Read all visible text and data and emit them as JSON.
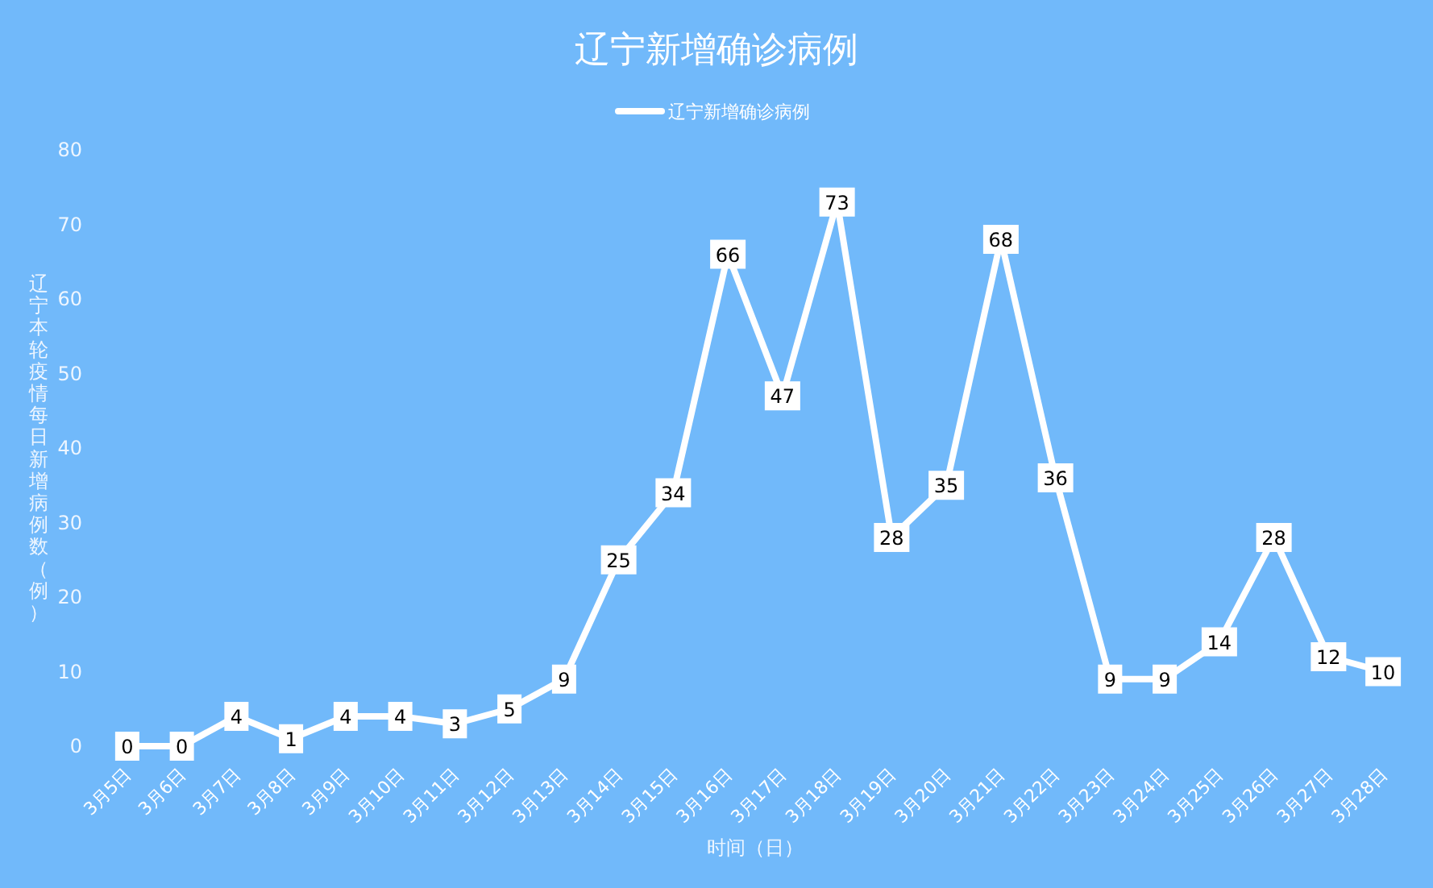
{
  "chart_data": {
    "type": "line",
    "title": "辽宁新增确诊病例",
    "ylabel": "辽宁本轮疫情每日新增病例数（例）",
    "xlabel": "时间（日）",
    "categories": [
      "3月5日",
      "3月6日",
      "3月7日",
      "3月8日",
      "3月9日",
      "3月10日",
      "3月11日",
      "3月12日",
      "3月13日",
      "3月14日",
      "3月15日",
      "3月16日",
      "3月17日",
      "3月18日",
      "3月19日",
      "3月20日",
      "3月21日",
      "3月22日",
      "3月23日",
      "3月24日",
      "3月25日",
      "3月26日",
      "3月27日",
      "3月28日"
    ],
    "series": [
      {
        "name": "辽宁新增确诊病例",
        "color": "#ffffff",
        "values": [
          0,
          0,
          4,
          1,
          4,
          4,
          3,
          5,
          9,
          25,
          34,
          66,
          47,
          73,
          28,
          35,
          68,
          36,
          9,
          9,
          14,
          28,
          12,
          10
        ]
      }
    ],
    "ylim": [
      0,
      80
    ],
    "yticks": [
      0,
      10,
      20,
      30,
      40,
      50,
      60,
      70,
      80
    ],
    "legend": "top",
    "marker": "square",
    "data_labels": true
  }
}
